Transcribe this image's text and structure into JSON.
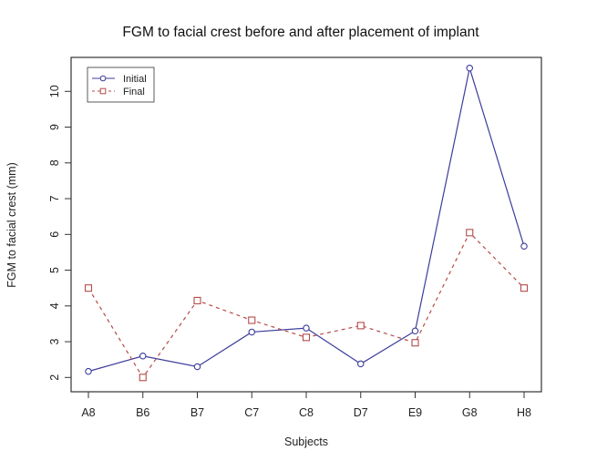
{
  "chart_data": {
    "type": "line",
    "title": "FGM  to facial crest before and after placement of implant",
    "xlabel": "Subjects",
    "ylabel": "FGM to facial crest (mm)",
    "categories": [
      "A8",
      "B6",
      "B7",
      "C7",
      "C8",
      "D7",
      "E9",
      "G8",
      "H8"
    ],
    "ylim": [
      1.6,
      10.95
    ],
    "yticks": [
      2,
      3,
      4,
      5,
      6,
      7,
      8,
      9,
      10
    ],
    "grid": false,
    "legend_position": "top-left",
    "series": [
      {
        "name": "Initial",
        "color": "#3c3c9c",
        "line": "solid",
        "marker": "circle",
        "values": [
          2.17,
          2.6,
          2.3,
          3.27,
          3.38,
          2.38,
          3.3,
          10.65,
          5.67
        ]
      },
      {
        "name": "Final",
        "color": "#b54a4a",
        "line": "dashed",
        "marker": "square",
        "values": [
          4.5,
          2.0,
          4.15,
          3.6,
          3.12,
          3.45,
          2.97,
          6.05,
          4.5
        ]
      }
    ]
  }
}
